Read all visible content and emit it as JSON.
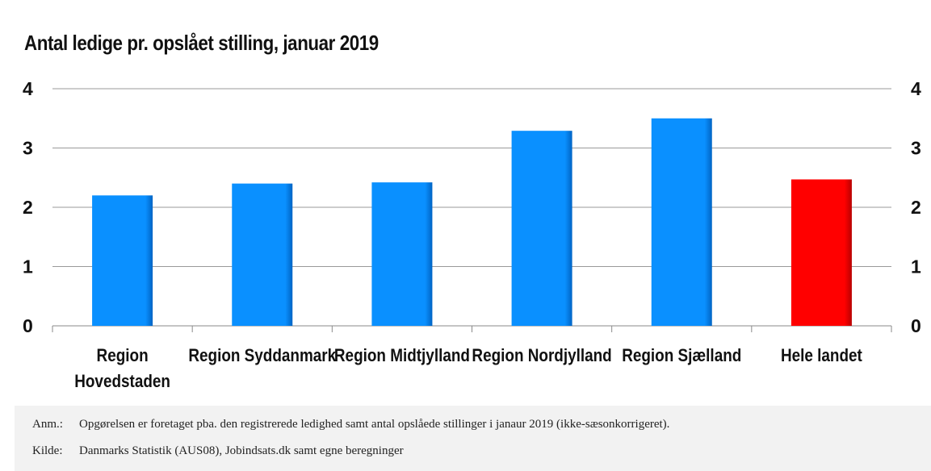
{
  "chart_data": {
    "type": "bar",
    "title": "Antal ledige pr. opslået stilling, januar 2019",
    "categories": [
      [
        "Region",
        "Hovedstaden"
      ],
      [
        "Region Syddanmark"
      ],
      [
        "Region Midtjylland"
      ],
      [
        "Region Nordjylland"
      ],
      [
        "Region Sjælland"
      ],
      [
        "Hele landet"
      ]
    ],
    "values": [
      2.2,
      2.4,
      2.42,
      3.29,
      3.5,
      2.47
    ],
    "bar_colors": [
      "#0088ff",
      "#0088ff",
      "#0088ff",
      "#0088ff",
      "#0088ff",
      "#ff0000"
    ],
    "ylim": [
      0,
      4
    ],
    "yticks": [
      "0",
      "1",
      "2",
      "3",
      "4"
    ],
    "secondary_axis": true,
    "grid": true,
    "xlabel": "",
    "ylabel": ""
  },
  "footer": {
    "note_label": "Anm.:",
    "note_text": "Opgørelsen er foretaget pba. den registrerede ledighed samt antal opslåede stillinger i janaur 2019 (ikke-sæsonkorrigeret).",
    "source_label": "Kilde:",
    "source_text": "Danmarks Statistik (AUS08), Jobindsats.dk samt egne beregninger"
  }
}
